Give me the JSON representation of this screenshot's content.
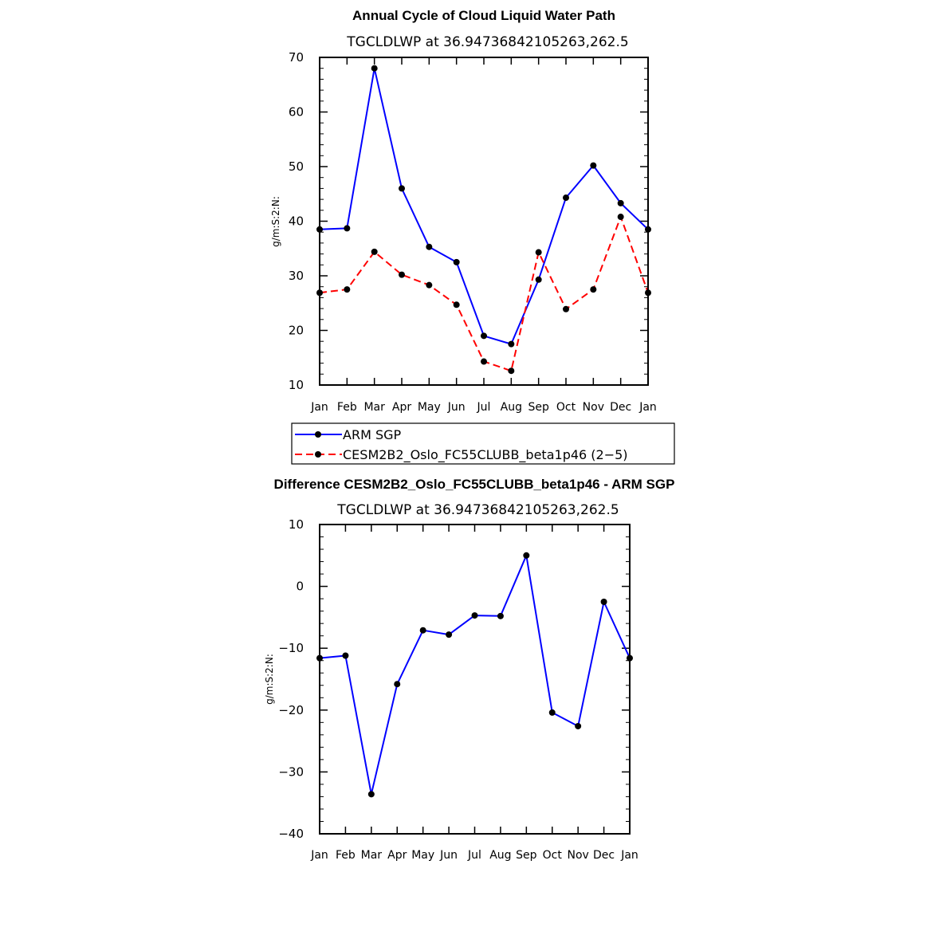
{
  "chart_data": [
    {
      "type": "line",
      "title": "Annual Cycle of Cloud Liquid Water Path",
      "subtitle": "TGCLDLWP  at  36.94736842105263,262.5",
      "ylabel": "g/m:S:2:N:",
      "xlabel": "",
      "categories": [
        "Jan",
        "Feb",
        "Mar",
        "Apr",
        "May",
        "Jun",
        "Jul",
        "Aug",
        "Sep",
        "Oct",
        "Nov",
        "Dec",
        "Jan"
      ],
      "ylim": [
        10,
        70
      ],
      "yticks": [
        10,
        20,
        30,
        40,
        50,
        60,
        70
      ],
      "series": [
        {
          "name": "ARM SGP",
          "color": "#0000ff",
          "dash": "solid",
          "values": [
            38.5,
            38.7,
            68.0,
            46.0,
            35.3,
            32.5,
            19.0,
            17.5,
            29.3,
            44.3,
            50.2,
            43.3,
            38.5
          ]
        },
        {
          "name": "CESM2B2_Oslo_FC55CLUBB_beta1p46 (2−5)",
          "color": "#ff0000",
          "dash": "dashed",
          "values": [
            26.9,
            27.5,
            34.4,
            30.2,
            28.3,
            24.7,
            14.3,
            12.6,
            34.3,
            23.9,
            27.5,
            40.8,
            26.9
          ]
        }
      ],
      "legend": "below"
    },
    {
      "type": "line",
      "title": "Difference CESM2B2_Oslo_FC55CLUBB_beta1p46 - ARM SGP",
      "subtitle": "TGCLDLWP  at  36.94736842105263,262.5",
      "ylabel": "g/m:S:2:N:",
      "xlabel": "",
      "categories": [
        "Jan",
        "Feb",
        "Mar",
        "Apr",
        "May",
        "Jun",
        "Jul",
        "Aug",
        "Sep",
        "Oct",
        "Nov",
        "Dec",
        "Jan"
      ],
      "ylim": [
        -40,
        10
      ],
      "yticks": [
        -40,
        -30,
        -20,
        -10,
        0,
        10
      ],
      "ytick_labels": [
        "−40",
        "−30",
        "−20",
        "−10",
        "0",
        "10"
      ],
      "series": [
        {
          "color": "#0000ff",
          "dash": "solid",
          "values": [
            -11.6,
            -11.2,
            -33.6,
            -15.8,
            -7.1,
            -7.8,
            -4.7,
            -4.8,
            5.0,
            -20.4,
            -22.6,
            -2.5,
            -11.6
          ]
        }
      ]
    }
  ]
}
